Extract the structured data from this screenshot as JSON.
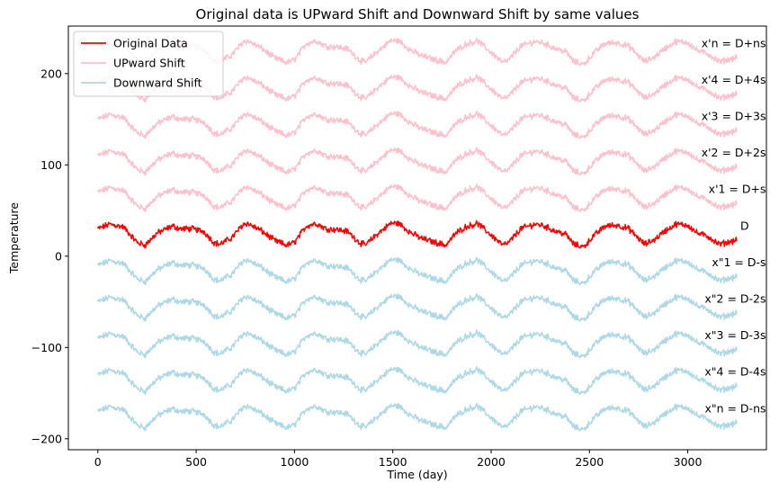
{
  "chart_data": {
    "type": "line",
    "title": "Original data is UPward Shift and Downward Shift by same values",
    "xlabel": "Time (day)",
    "ylabel": "Temperature",
    "xlim": [
      -150,
      3400
    ],
    "ylim": [
      -212,
      252
    ],
    "x_ticks": [
      0,
      500,
      1000,
      1500,
      2000,
      2500,
      3000
    ],
    "y_ticks": [
      -200,
      -100,
      0,
      100,
      200
    ],
    "y_tick_labels": [
      "−200",
      "−100",
      "0",
      "100",
      "200"
    ],
    "grid": false,
    "legend": {
      "placement": "top-left",
      "entries": [
        {
          "name": "Original Data",
          "color": "#ff0000"
        },
        {
          "name": "UPward Shift",
          "color": "#ffc0cb"
        },
        {
          "name": "Downward Shift",
          "color": "#add8e6"
        }
      ]
    },
    "x_range": [
      0,
      3250
    ],
    "base_profile": {
      "x": [
        0,
        60,
        130,
        200,
        240,
        300,
        380,
        420,
        480,
        540,
        590,
        620,
        680,
        740,
        760,
        830,
        900,
        960,
        1000,
        1060,
        1110,
        1160,
        1220,
        1270,
        1330,
        1360,
        1420,
        1490,
        1530,
        1590,
        1640,
        1700,
        1770,
        1820,
        1870,
        1930,
        1990,
        2060,
        2090,
        2150,
        2220,
        2260,
        2320,
        2380,
        2420,
        2470,
        2520,
        2580,
        2640,
        2700,
        2780,
        2830,
        2880,
        2940,
        3000,
        3050,
        3100,
        3160,
        3200,
        3250
      ],
      "y": [
        30,
        35,
        32,
        15,
        12,
        25,
        33,
        30,
        30,
        27,
        15,
        13,
        20,
        35,
        36,
        28,
        17,
        12,
        15,
        33,
        36,
        30,
        29,
        27,
        15,
        12,
        24,
        36,
        36,
        26,
        20,
        16,
        12,
        25,
        32,
        36,
        25,
        12,
        15,
        30,
        35,
        34,
        28,
        24,
        13,
        10,
        22,
        33,
        34,
        30,
        13,
        18,
        27,
        35,
        34,
        25,
        22,
        13,
        15,
        18
      ]
    },
    "shift_step": 40,
    "series": [
      {
        "name": "Original Data",
        "color": "#ff0000",
        "shift": 0,
        "label": "D"
      },
      {
        "name": "UPward Shift",
        "color": "#ffc0cb",
        "shift": 40,
        "label": "x'1 = D+s"
      },
      {
        "name": "UPward Shift",
        "color": "#ffc0cb",
        "shift": 80,
        "label": "x'2 = D+2s"
      },
      {
        "name": "UPward Shift",
        "color": "#ffc0cb",
        "shift": 120,
        "label": "x'3 = D+3s"
      },
      {
        "name": "UPward Shift",
        "color": "#ffc0cb",
        "shift": 160,
        "label": "x'4 = D+4s"
      },
      {
        "name": "UPward Shift",
        "color": "#ffc0cb",
        "shift": 200,
        "label": "x'n = D+ns"
      },
      {
        "name": "Downward Shift",
        "color": "#add8e6",
        "shift": -40,
        "label": "x\"1 = D-s"
      },
      {
        "name": "Downward Shift",
        "color": "#add8e6",
        "shift": -80,
        "label": "x\"2 = D-2s"
      },
      {
        "name": "Downward Shift",
        "color": "#add8e6",
        "shift": -120,
        "label": "x\"3 = D-3s"
      },
      {
        "name": "Downward Shift",
        "color": "#add8e6",
        "shift": -160,
        "label": "x\"4 = D-4s"
      },
      {
        "name": "Downward Shift",
        "color": "#add8e6",
        "shift": -200,
        "label": "x\"n = D-ns"
      }
    ]
  }
}
